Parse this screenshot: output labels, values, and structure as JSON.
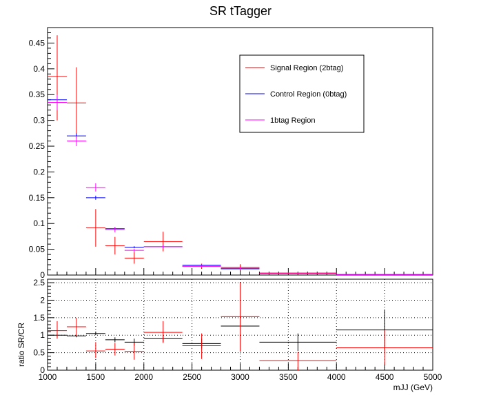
{
  "chart_data": [
    {
      "type": "line",
      "title": "SR tTagger",
      "xlabel": "",
      "ylabel": "",
      "xlim": [
        1000,
        5000
      ],
      "ylim": [
        0,
        0.48
      ],
      "yticks": [
        "0",
        "0.05",
        "0.1",
        "0.15",
        "0.2",
        "0.25",
        "0.3",
        "0.35",
        "0.4",
        "0.45"
      ],
      "legend_placement": "top-right",
      "grid": false,
      "series": [
        {
          "name": "Signal Region (2btag)",
          "color": "#ff0000",
          "points": [
            {
              "x": 1100,
              "xlo": 1000,
              "xhi": 1200,
              "y": 0.385,
              "ylo": 0.3,
              "yhi": 0.465
            },
            {
              "x": 1300,
              "xlo": 1200,
              "xhi": 1400,
              "y": 0.334,
              "ylo": 0.268,
              "yhi": 0.403
            },
            {
              "x": 1500,
              "xlo": 1400,
              "xhi": 1600,
              "y": 0.092,
              "ylo": 0.055,
              "yhi": 0.128
            },
            {
              "x": 1700,
              "xlo": 1600,
              "xhi": 1800,
              "y": 0.057,
              "ylo": 0.04,
              "yhi": 0.074
            },
            {
              "x": 1900,
              "xlo": 1800,
              "xhi": 2000,
              "y": 0.033,
              "ylo": 0.022,
              "yhi": 0.045
            },
            {
              "x": 2200,
              "xlo": 2000,
              "xhi": 2400,
              "y": 0.065,
              "ylo": 0.046,
              "yhi": 0.084
            },
            {
              "x": 2600,
              "xlo": 2400,
              "xhi": 2800,
              "y": 0.017,
              "ylo": 0.012,
              "yhi": 0.022
            },
            {
              "x": 3000,
              "xlo": 2800,
              "xhi": 3200,
              "y": 0.015,
              "ylo": 0.009,
              "yhi": 0.021
            },
            {
              "x": 3600,
              "xlo": 3200,
              "xhi": 4000,
              "y": 0.003,
              "ylo": 0.001,
              "yhi": 0.005
            },
            {
              "x": 4500,
              "xlo": 4000,
              "xhi": 5000,
              "y": 0.001,
              "ylo": 0.0,
              "yhi": 0.002
            }
          ]
        },
        {
          "name": "Control Region (0btag)",
          "color": "#0000ff",
          "points": [
            {
              "x": 1100,
              "xlo": 1000,
              "xhi": 1200,
              "y": 0.34,
              "ylo": 0.333,
              "yhi": 0.347
            },
            {
              "x": 1300,
              "xlo": 1200,
              "xhi": 1400,
              "y": 0.27,
              "ylo": 0.265,
              "yhi": 0.275
            },
            {
              "x": 1500,
              "xlo": 1400,
              "xhi": 1600,
              "y": 0.15,
              "ylo": 0.146,
              "yhi": 0.154
            },
            {
              "x": 1700,
              "xlo": 1600,
              "xhi": 1800,
              "y": 0.09,
              "ylo": 0.087,
              "yhi": 0.093
            },
            {
              "x": 1900,
              "xlo": 1800,
              "xhi": 2000,
              "y": 0.054,
              "ylo": 0.052,
              "yhi": 0.056
            },
            {
              "x": 2200,
              "xlo": 2000,
              "xhi": 2400,
              "y": 0.055,
              "ylo": 0.053,
              "yhi": 0.057
            },
            {
              "x": 2600,
              "xlo": 2400,
              "xhi": 2800,
              "y": 0.019,
              "ylo": 0.018,
              "yhi": 0.02
            },
            {
              "x": 3000,
              "xlo": 2800,
              "xhi": 3200,
              "y": 0.012,
              "ylo": 0.011,
              "yhi": 0.013
            },
            {
              "x": 3600,
              "xlo": 3200,
              "xhi": 4000,
              "y": 0.004,
              "ylo": 0.0035,
              "yhi": 0.0045
            },
            {
              "x": 4500,
              "xlo": 4000,
              "xhi": 5000,
              "y": 0.001,
              "ylo": 0.0008,
              "yhi": 0.0012
            }
          ]
        },
        {
          "name": "1btag Region",
          "color": "#ff00ff",
          "points": [
            {
              "x": 1100,
              "xlo": 1000,
              "xhi": 1200,
              "y": 0.335,
              "ylo": 0.32,
              "yhi": 0.35
            },
            {
              "x": 1300,
              "xlo": 1200,
              "xhi": 1400,
              "y": 0.26,
              "ylo": 0.25,
              "yhi": 0.27
            },
            {
              "x": 1500,
              "xlo": 1400,
              "xhi": 1600,
              "y": 0.17,
              "ylo": 0.162,
              "yhi": 0.178
            },
            {
              "x": 1700,
              "xlo": 1600,
              "xhi": 1800,
              "y": 0.088,
              "ylo": 0.083,
              "yhi": 0.093
            },
            {
              "x": 1900,
              "xlo": 1800,
              "xhi": 2000,
              "y": 0.048,
              "ylo": 0.045,
              "yhi": 0.051
            },
            {
              "x": 2200,
              "xlo": 2000,
              "xhi": 2400,
              "y": 0.055,
              "ylo": 0.052,
              "yhi": 0.058
            },
            {
              "x": 2600,
              "xlo": 2400,
              "xhi": 2800,
              "y": 0.017,
              "ylo": 0.015,
              "yhi": 0.019
            },
            {
              "x": 3000,
              "xlo": 2800,
              "xhi": 3200,
              "y": 0.013,
              "ylo": 0.011,
              "yhi": 0.015
            },
            {
              "x": 3600,
              "xlo": 3200,
              "xhi": 4000,
              "y": 0.004,
              "ylo": 0.003,
              "yhi": 0.005
            },
            {
              "x": 4500,
              "xlo": 4000,
              "xhi": 5000,
              "y": 0.001,
              "ylo": 0.0005,
              "yhi": 0.0015
            }
          ]
        }
      ]
    },
    {
      "type": "line",
      "title": "",
      "xlabel": "mJJ (GeV)",
      "ylabel": "ratio SR/CR",
      "xlim": [
        1000,
        5000
      ],
      "ylim": [
        0,
        2.6
      ],
      "xticks": [
        "1000",
        "1500",
        "2000",
        "2500",
        "3000",
        "3500",
        "4000",
        "4500",
        "5000"
      ],
      "yticks": [
        "0",
        "0.5",
        "1",
        "1.5",
        "2",
        "2.5"
      ],
      "grid": true,
      "series": [
        {
          "name": "",
          "color": "#000000",
          "points": [
            {
              "x": 1100,
              "xlo": 1000,
              "xhi": 1200,
              "y": 1.0,
              "ylo": 0.95,
              "yhi": 1.05
            },
            {
              "x": 1300,
              "xlo": 1200,
              "xhi": 1400,
              "y": 0.98,
              "ylo": 0.94,
              "yhi": 1.02
            },
            {
              "x": 1500,
              "xlo": 1400,
              "xhi": 1600,
              "y": 1.05,
              "ylo": 1.0,
              "yhi": 1.1
            },
            {
              "x": 1700,
              "xlo": 1600,
              "xhi": 1800,
              "y": 0.87,
              "ylo": 0.8,
              "yhi": 0.94
            },
            {
              "x": 1900,
              "xlo": 1800,
              "xhi": 2000,
              "y": 0.8,
              "ylo": 0.7,
              "yhi": 0.9
            },
            {
              "x": 2200,
              "xlo": 2000,
              "xhi": 2400,
              "y": 0.9,
              "ylo": 0.8,
              "yhi": 1.0
            },
            {
              "x": 2600,
              "xlo": 2400,
              "xhi": 2800,
              "y": 0.76,
              "ylo": 0.62,
              "yhi": 0.9
            },
            {
              "x": 3000,
              "xlo": 2800,
              "xhi": 3200,
              "y": 1.26,
              "ylo": 0.95,
              "yhi": 1.6
            },
            {
              "x": 3600,
              "xlo": 3200,
              "xhi": 4000,
              "y": 0.8,
              "ylo": 0.55,
              "yhi": 1.05
            },
            {
              "x": 4500,
              "xlo": 4000,
              "xhi": 5000,
              "y": 1.15,
              "ylo": 0.55,
              "yhi": 1.72
            }
          ]
        },
        {
          "name": "",
          "color": "#ff0000",
          "points": [
            {
              "x": 1100,
              "xlo": 1000,
              "xhi": 1200,
              "y": 1.13,
              "ylo": 0.9,
              "yhi": 1.4
            },
            {
              "x": 1300,
              "xlo": 1200,
              "xhi": 1400,
              "y": 1.24,
              "ylo": 0.98,
              "yhi": 1.5
            },
            {
              "x": 1500,
              "xlo": 1400,
              "xhi": 1600,
              "y": 0.55,
              "ylo": 0.35,
              "yhi": 0.8
            },
            {
              "x": 1700,
              "xlo": 1600,
              "xhi": 1800,
              "y": 0.6,
              "ylo": 0.42,
              "yhi": 0.78
            },
            {
              "x": 1900,
              "xlo": 1800,
              "xhi": 2000,
              "y": 0.54,
              "ylo": 0.3,
              "yhi": 0.78
            },
            {
              "x": 2200,
              "xlo": 2000,
              "xhi": 2400,
              "y": 1.08,
              "ylo": 0.78,
              "yhi": 1.4
            },
            {
              "x": 2600,
              "xlo": 2400,
              "xhi": 2800,
              "y": 0.7,
              "ylo": 0.32,
              "yhi": 1.05
            },
            {
              "x": 3000,
              "xlo": 2800,
              "xhi": 3200,
              "y": 1.53,
              "ylo": 0.55,
              "yhi": 2.5
            },
            {
              "x": 3600,
              "xlo": 3200,
              "xhi": 4000,
              "y": 0.27,
              "ylo": 0.0,
              "yhi": 0.52
            },
            {
              "x": 4500,
              "xlo": 4000,
              "xhi": 5000,
              "y": 0.64,
              "ylo": 0.15,
              "yhi": 1.15
            }
          ]
        }
      ]
    }
  ]
}
